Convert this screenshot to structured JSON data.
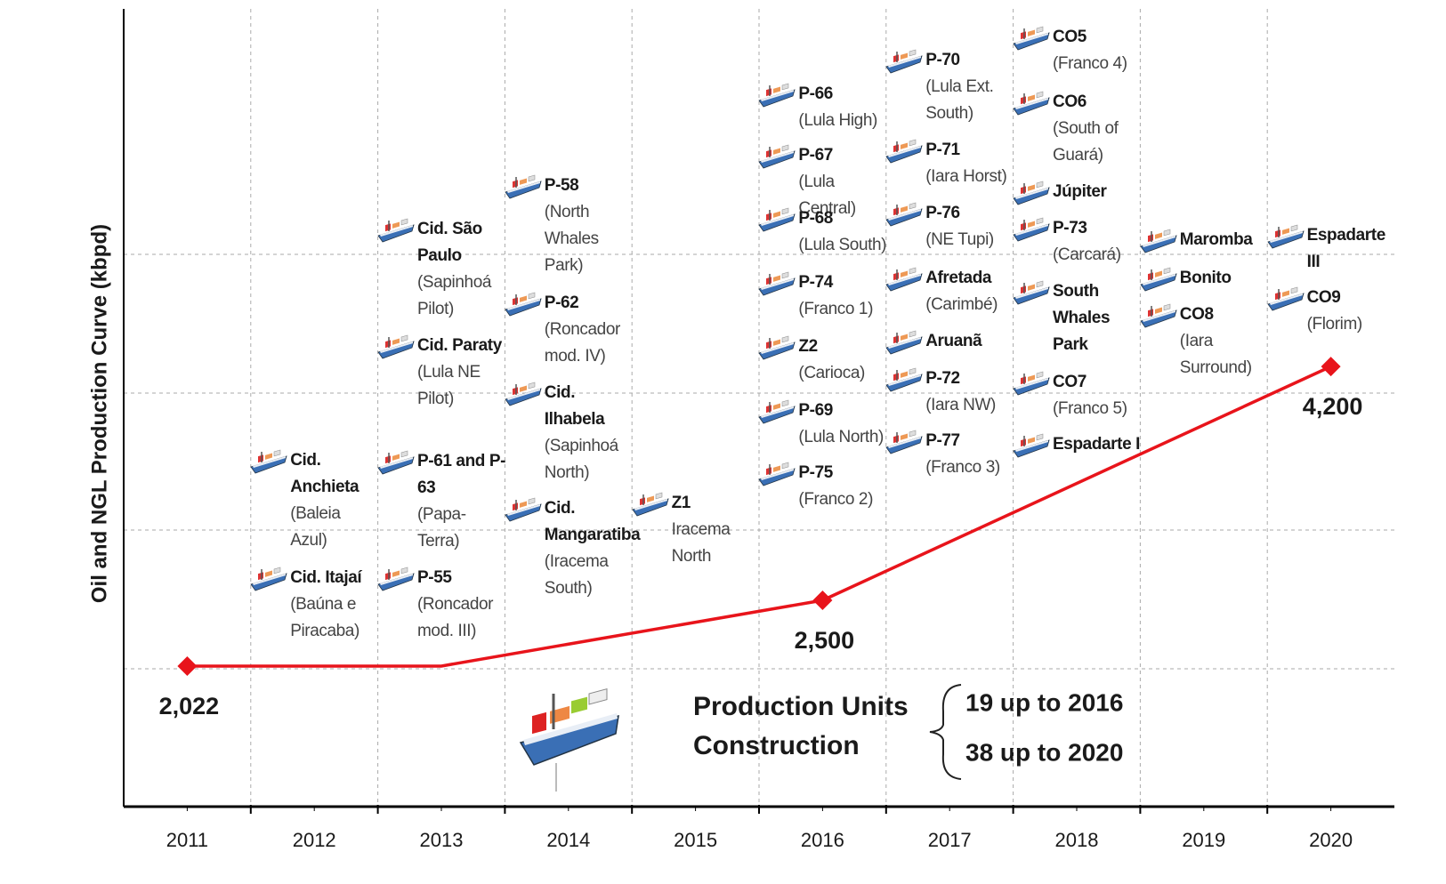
{
  "chart_data": {
    "type": "line",
    "y_label": "Oil and NGL Production Curve (kbpd)",
    "xlim": [
      2010.5,
      2020.5
    ],
    "xticks": [
      2011,
      2012,
      2013,
      2014,
      2015,
      2016,
      2017,
      2018,
      2019,
      2020
    ],
    "ylim": [
      1000,
      6800
    ],
    "x": [
      2011,
      2013,
      2016,
      2020
    ],
    "values": [
      2022,
      2022,
      2500,
      4200
    ],
    "value_labels": [
      "2,022",
      null,
      "2,500",
      "4,200"
    ],
    "color": "#e8141b",
    "production_units": [
      [],
      [
        {
          "name": "Cid. Anchieta",
          "detail": "(Baleia Azul)"
        },
        {
          "name": "Cid. Itajaí",
          "detail": "(Baúna e Piracaba)"
        }
      ],
      [
        {
          "name": "Cid. São Paulo",
          "detail": "(Sapinhoá Pilot)"
        },
        {
          "name": "Cid. Paraty",
          "detail": "(Lula NE Pilot)"
        },
        {
          "name": "P-61 and P-63",
          "detail": "(Papa-Terra)"
        },
        {
          "name": "P-55",
          "detail": "(Roncador mod. III)"
        }
      ],
      [
        {
          "name": "P-58",
          "detail": "(North Whales Park)"
        },
        {
          "name": "P-62",
          "detail": "(Roncador mod. IV)"
        },
        {
          "name": "Cid. Ilhabela",
          "detail": "(Sapinhoá North)"
        },
        {
          "name": "Cid. Mangaratiba",
          "detail": "(Iracema South)"
        }
      ],
      [
        {
          "name": "Z1",
          "detail": "Iracema North"
        }
      ],
      [
        {
          "name": "P-66",
          "detail": "(Lula High)"
        },
        {
          "name": "P-67",
          "detail": "(Lula Central)"
        },
        {
          "name": "P-68",
          "detail": "(Lula South)"
        },
        {
          "name": "P-74",
          "detail": "(Franco 1)"
        },
        {
          "name": "Z2",
          "detail": "(Carioca)"
        },
        {
          "name": "P-69",
          "detail": "(Lula North)"
        },
        {
          "name": "P-75",
          "detail": "(Franco 2)"
        }
      ],
      [
        {
          "name": "P-70",
          "detail": "(Lula Ext. South)"
        },
        {
          "name": "P-71",
          "detail": "(Iara Horst)"
        },
        {
          "name": "P-76",
          "detail": "(NE Tupi)"
        },
        {
          "name": "Afretada",
          "detail": "(Carimbé)"
        },
        {
          "name": "Aruanã"
        },
        {
          "name": "P-72",
          "detail": "(Iara NW)"
        },
        {
          "name": "P-77",
          "detail": "(Franco 3)"
        }
      ],
      [
        {
          "name": "CO5",
          "detail": "(Franco 4)"
        },
        {
          "name": "CO6",
          "detail": "(South of Guará)"
        },
        {
          "name": "Júpiter"
        },
        {
          "name": "P-73",
          "detail": "(Carcará)"
        },
        {
          "name": "South Whales Park"
        },
        {
          "name": "CO7",
          "detail": "(Franco 5)"
        },
        {
          "name": "Espadarte I"
        }
      ],
      [
        {
          "name": "Maromba"
        },
        {
          "name": "Bonito"
        },
        {
          "name": "CO8",
          "detail": "(Iara Surround)"
        }
      ],
      [
        {
          "name": "Espadarte III"
        },
        {
          "name": "CO9",
          "detail": "(Florim)"
        }
      ]
    ],
    "summary": {
      "title": "Production Units Construction",
      "items": [
        "19 up to 2016",
        "38 up to 2020"
      ]
    }
  }
}
